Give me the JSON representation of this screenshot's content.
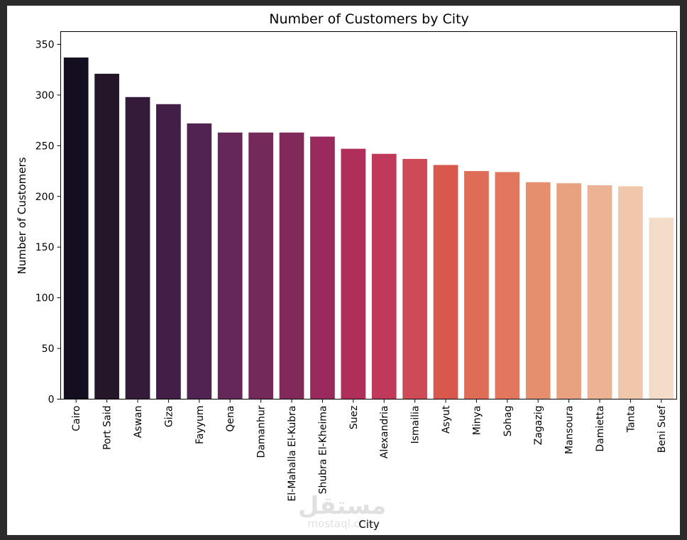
{
  "chart_data": {
    "type": "bar",
    "title": "Number of Customers by City",
    "xlabel": "City",
    "ylabel": "Number of Customers",
    "ylim": [
      0,
      350
    ],
    "yticks": [
      0,
      50,
      100,
      150,
      200,
      250,
      300,
      350
    ],
    "grid": false,
    "categories": [
      "Cairo",
      "Port Said",
      "Aswan",
      "Giza",
      "Fayyum",
      "Qena",
      "Damanhur",
      "El-Mahalla El-Kubra",
      "Shubra El-Kheima",
      "Suez",
      "Alexandria",
      "Ismailia",
      "Asyut",
      "Minya",
      "Sohag",
      "Zagazig",
      "Mansoura",
      "Damietta",
      "Tanta",
      "Beni Suef"
    ],
    "values": [
      337,
      321,
      298,
      291,
      272,
      263,
      263,
      263,
      259,
      247,
      242,
      237,
      231,
      225,
      224,
      214,
      213,
      211,
      210,
      179
    ],
    "colors": [
      "#140e20",
      "#251729",
      "#331b39",
      "#411f47",
      "#512352",
      "#652757",
      "#74295b",
      "#82295c",
      "#9a2a5d",
      "#b02f5a",
      "#c1395a",
      "#ce4a57",
      "#d8584e",
      "#dd6d56",
      "#e2775e",
      "#e58f6e",
      "#e8a27f",
      "#ebb293",
      "#f0c7aa",
      "#f4ddc8"
    ]
  },
  "watermark": {
    "arabic": "مستقل",
    "latin": "mostaql.com"
  }
}
